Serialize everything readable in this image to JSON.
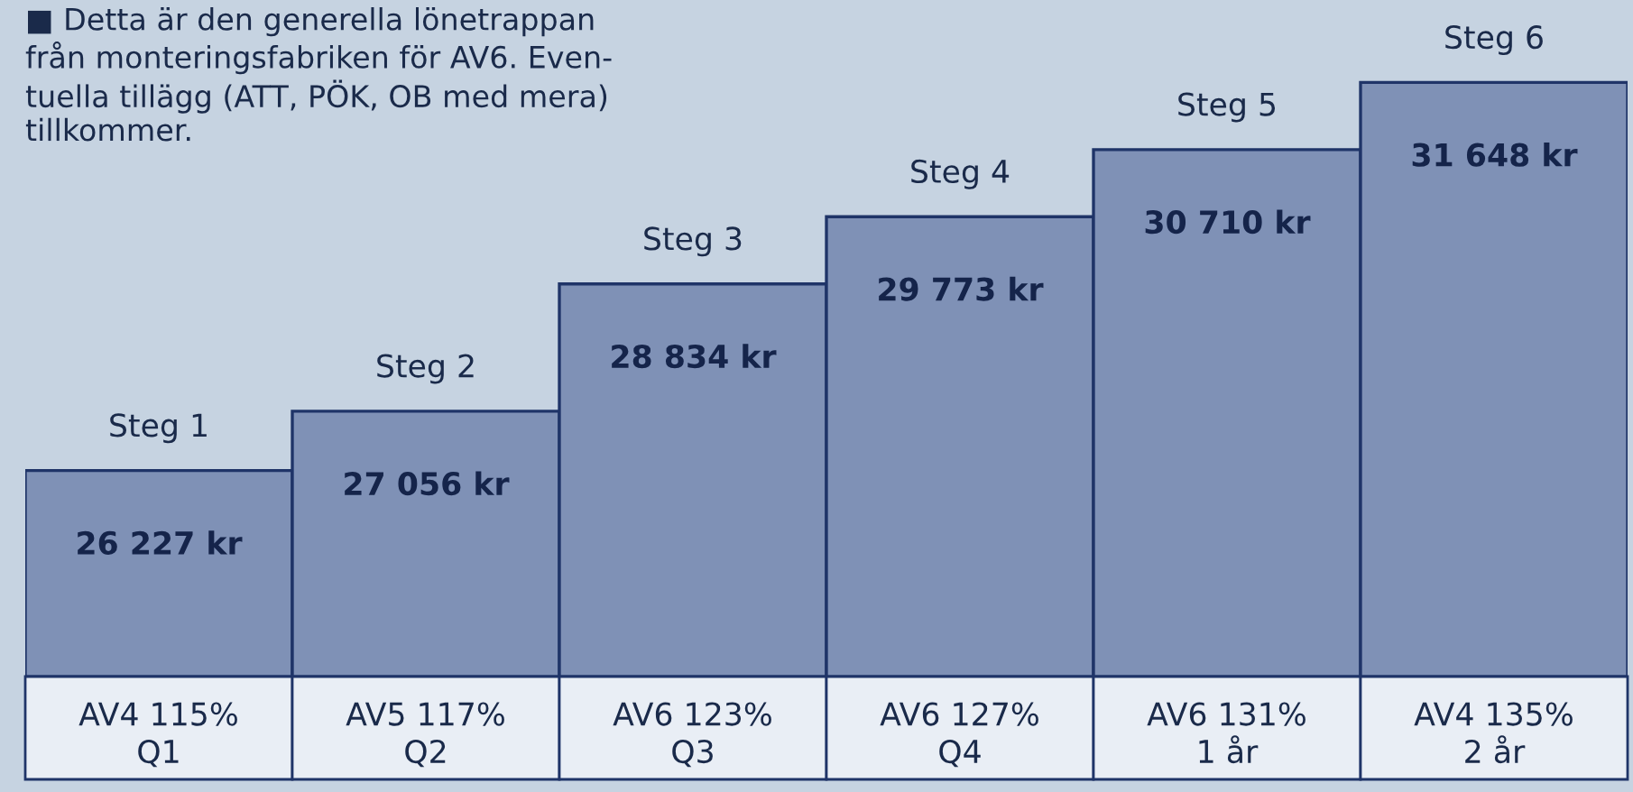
{
  "chart_data": {
    "type": "bar",
    "title": "■ Detta är den generella lönetrappan\nfrån monteringsfabriken för AV6. Even-\ntuella tillägg (ATT, PÖK, OB med mera)\ntillkommer.",
    "categories": [
      "AV4 115%\nQ1",
      "AV5 117%\nQ2",
      "AV6 123%\nQ3",
      "AV6 127%\nQ4",
      "AV6 131%\n1 år",
      "AV4 135%\n2 år"
    ],
    "values": [
      26227,
      27056,
      28834,
      29773,
      30710,
      31648
    ],
    "value_labels": [
      "26 227 kr",
      "27 056 kr",
      "28 834 kr",
      "29 773 kr",
      "30 710 kr",
      "31 648 kr"
    ],
    "color": "#7f91b6",
    "ylim": [
      23350,
      32800
    ],
    "grid": false,
    "legend": false,
    "annotations": [
      {
        "text": "Steg 1",
        "x": "AV4 115%\nQ1",
        "y": 26227
      },
      {
        "text": "Steg 2",
        "x": "AV5 117%\nQ2",
        "y": 27056
      },
      {
        "text": "Steg 3",
        "x": "AV6 123%\nQ3",
        "y": 28834
      },
      {
        "text": "Steg 4",
        "x": "AV6 127%\nQ4",
        "y": 29773
      },
      {
        "text": "Steg 5",
        "x": "AV6 131%\n1 år",
        "y": 30710
      },
      {
        "text": "Steg 6",
        "x": "AV4 135%\n2 år",
        "y": 31648
      }
    ]
  }
}
